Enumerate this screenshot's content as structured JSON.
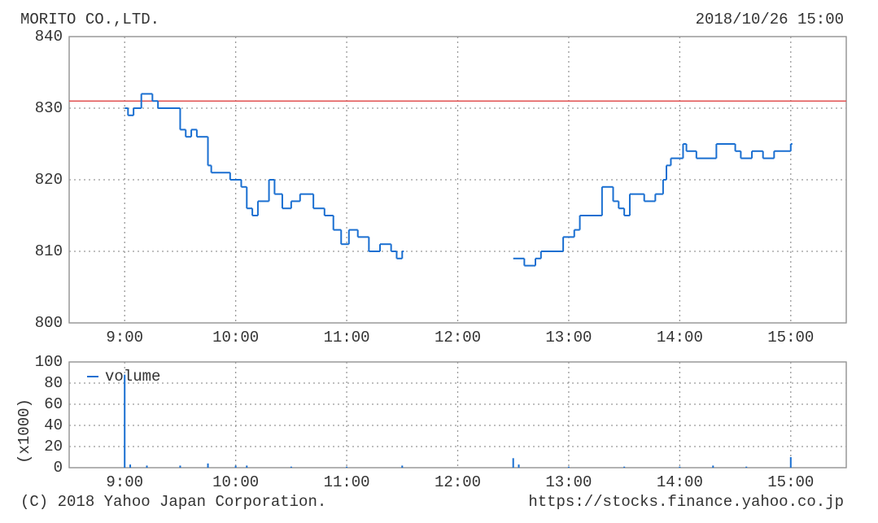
{
  "chart_data": [
    {
      "type": "line",
      "title": "MORITO CO.,LTD.",
      "annotation": "2018/10/26 15:00",
      "x": [
        9.0,
        9.03,
        9.08,
        9.15,
        9.25,
        9.3,
        9.5,
        9.55,
        9.6,
        9.65,
        9.75,
        9.78,
        9.95,
        10.05,
        10.1,
        10.15,
        10.2,
        10.3,
        10.35,
        10.42,
        10.5,
        10.58,
        10.7,
        10.8,
        10.88,
        10.95,
        11.02,
        11.1,
        11.2,
        11.3,
        11.4,
        11.45,
        11.5,
        12.0,
        12.5,
        12.6,
        12.7,
        12.75,
        12.95,
        13.05,
        13.1,
        13.3,
        13.4,
        13.45,
        13.5,
        13.55,
        13.68,
        13.78,
        13.85,
        13.88,
        13.92,
        14.03,
        14.06,
        14.15,
        14.33,
        14.5,
        14.55,
        14.65,
        14.75,
        14.85,
        15.0
      ],
      "series": [
        {
          "color": "#1a6fd1",
          "values": [
            830,
            829,
            830,
            832,
            831,
            830,
            827,
            826,
            827,
            826,
            822,
            821,
            820,
            819,
            816,
            815,
            817,
            820,
            818,
            816,
            817,
            818,
            816,
            815,
            813,
            811,
            813,
            812,
            810,
            811,
            810,
            809,
            810,
            null,
            809,
            808,
            809,
            810,
            812,
            813,
            815,
            819,
            817,
            816,
            815,
            818,
            817,
            818,
            820,
            822,
            823,
            825,
            824,
            823,
            825,
            824,
            823,
            824,
            823,
            824,
            825
          ]
        }
      ],
      "reference_line": {
        "value": 831,
        "color": "#e05050"
      },
      "xlim": [
        8.5,
        15.5
      ],
      "ylim": [
        800,
        840
      ],
      "xticks": [
        {
          "value": 9,
          "label": "9:00"
        },
        {
          "value": 10,
          "label": "10:00"
        },
        {
          "value": 11,
          "label": "11:00"
        },
        {
          "value": 12,
          "label": "12:00"
        },
        {
          "value": 13,
          "label": "13:00"
        },
        {
          "value": 14,
          "label": "14:00"
        },
        {
          "value": 15,
          "label": "15:00"
        }
      ],
      "yticks": [
        800,
        810,
        820,
        830,
        840
      ],
      "grid": true
    },
    {
      "type": "bar",
      "y_label": "(x1000)",
      "legend": "upper left",
      "x": [
        9.0,
        9.05,
        9.2,
        9.5,
        9.75,
        10.0,
        10.1,
        10.5,
        11.0,
        11.5,
        12.5,
        12.55,
        13.0,
        13.5,
        14.0,
        14.3,
        14.6,
        15.0
      ],
      "series": [
        {
          "name": "volume",
          "color": "#1a6fd1",
          "values": [
            88,
            3,
            2,
            2,
            4,
            2,
            2,
            1,
            1,
            2,
            9,
            3,
            1,
            1,
            1,
            2,
            1,
            10
          ]
        }
      ],
      "xlim": [
        8.5,
        15.5
      ],
      "ylim": [
        0,
        100
      ],
      "xticks": [
        {
          "value": 9,
          "label": "9:00"
        },
        {
          "value": 10,
          "label": "10:00"
        },
        {
          "value": 11,
          "label": "11:00"
        },
        {
          "value": 12,
          "label": "12:00"
        },
        {
          "value": 13,
          "label": "13:00"
        },
        {
          "value": 14,
          "label": "14:00"
        },
        {
          "value": 15,
          "label": "15:00"
        }
      ],
      "yticks": [
        0,
        20,
        40,
        60,
        80,
        100
      ],
      "grid": true
    }
  ],
  "footer": {
    "copyright": "(C) 2018 Yahoo Japan Corporation.",
    "url": "https://stocks.finance.yahoo.co.jp"
  }
}
